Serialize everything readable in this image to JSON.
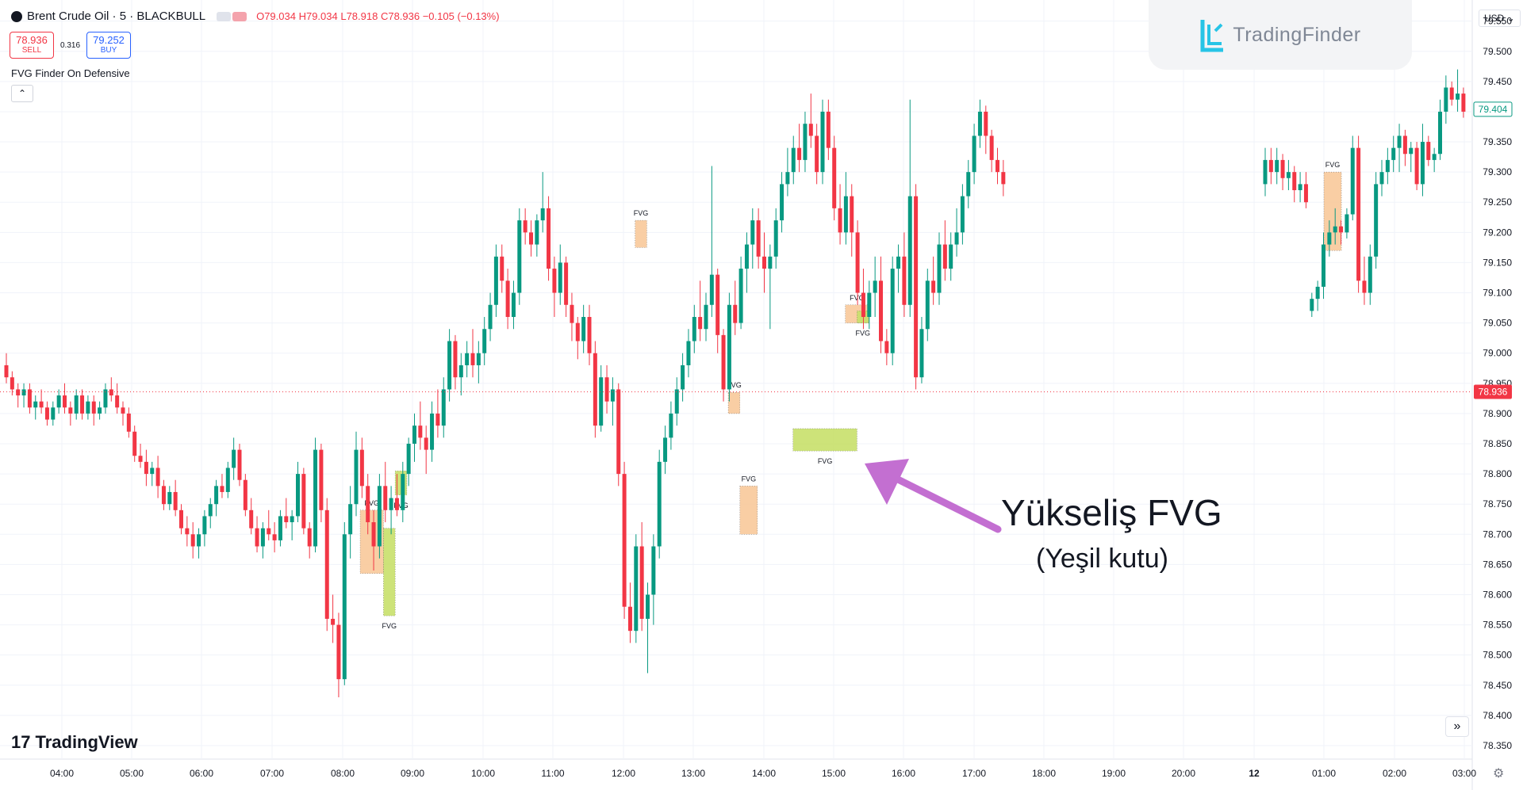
{
  "header": {
    "symbol": "Brent Crude Oil · 5 · BLACKBULL",
    "ohlc": "O79.034 H79.034 L78.918 C78.936 −0.105 (−0.13%)"
  },
  "trade": {
    "sell_price": "78.936",
    "sell_label": "SELL",
    "spread": "0.316",
    "buy_price": "79.252",
    "buy_label": "BUY"
  },
  "indicator": {
    "name": "FVG Finder On Defensive"
  },
  "brand": {
    "name": "TradingFinder"
  },
  "currency": {
    "label": "USD ⌄"
  },
  "footer": {
    "logo_text": "TradingView",
    "logo_mark": "17"
  },
  "annotation": {
    "title": "Yükseliş FVG",
    "subtitle": "(Yeşil kutu)"
  },
  "colors": {
    "up": "#089981",
    "down": "#f23645",
    "fvg_bull": "#c8e06b",
    "fvg_bear": "#f9c99b",
    "arrow": "#c36fd1"
  },
  "chart_data": {
    "type": "candlestick",
    "x_tick_labels": [
      "04:00",
      "05:00",
      "06:00",
      "07:00",
      "08:00",
      "09:00",
      "10:00",
      "11:00",
      "12:00",
      "13:00",
      "14:00",
      "15:00",
      "16:00",
      "17:00",
      "18:00",
      "19:00",
      "20:00",
      "12",
      "01:00",
      "02:00",
      "03:00"
    ],
    "y_tick_labels": [
      "79.550",
      "79.500",
      "79.450",
      "79.400",
      "79.350",
      "79.300",
      "79.250",
      "79.200",
      "79.150",
      "79.100",
      "79.050",
      "79.000",
      "78.950",
      "78.900",
      "78.850",
      "78.800",
      "78.750",
      "78.700",
      "78.650",
      "78.600",
      "78.550",
      "78.500",
      "78.450",
      "78.400",
      "78.350"
    ],
    "ylim": [
      78.325,
      79.585
    ],
    "last_price": 78.936,
    "last_price_label": "78.936",
    "current_close": 79.404,
    "current_close_label": "79.404",
    "grid": true,
    "fvg_label": "FVG",
    "fvg_zones": [
      {
        "type": "bearish",
        "t0": "08:15",
        "t1": "08:35",
        "top": 78.74,
        "bottom": 78.635
      },
      {
        "type": "bullish",
        "t0": "08:35",
        "t1": "08:45",
        "top": 78.71,
        "bottom": 78.565
      },
      {
        "type": "bullish",
        "t0": "08:45",
        "t1": "08:55",
        "top": 78.805,
        "bottom": 78.765
      },
      {
        "type": "bearish",
        "t0": "12:10",
        "t1": "12:20",
        "top": 79.22,
        "bottom": 79.175
      },
      {
        "type": "bearish",
        "t0": "13:30",
        "t1": "13:40",
        "top": 78.935,
        "bottom": 78.9
      },
      {
        "type": "bearish",
        "t0": "13:40",
        "t1": "13:55",
        "top": 78.78,
        "bottom": 78.7
      },
      {
        "type": "bullish",
        "t0": "14:25",
        "t1": "15:20",
        "top": 78.875,
        "bottom": 78.838
      },
      {
        "type": "bearish",
        "t0": "15:10",
        "t1": "15:30",
        "top": 79.08,
        "bottom": 79.05
      },
      {
        "type": "bullish",
        "t0": "15:20",
        "t1": "15:30",
        "top": 79.07,
        "bottom": 79.05
      },
      {
        "type": "bearish",
        "t0": "01:00",
        "t1": "01:15",
        "top": 79.3,
        "bottom": 79.17
      }
    ],
    "candles": [
      [
        78.98,
        79.0,
        78.95,
        78.96
      ],
      [
        78.96,
        78.97,
        78.93,
        78.94
      ],
      [
        78.94,
        78.95,
        78.91,
        78.93
      ],
      [
        78.93,
        78.95,
        78.91,
        78.94
      ],
      [
        78.94,
        78.95,
        78.9,
        78.91
      ],
      [
        78.91,
        78.93,
        78.89,
        78.92
      ],
      [
        78.92,
        78.94,
        78.9,
        78.91
      ],
      [
        78.91,
        78.92,
        78.88,
        78.89
      ],
      [
        78.89,
        78.92,
        78.88,
        78.91
      ],
      [
        78.91,
        78.94,
        78.9,
        78.93
      ],
      [
        78.93,
        78.95,
        78.9,
        78.91
      ],
      [
        78.91,
        78.92,
        78.88,
        78.9
      ],
      [
        78.9,
        78.94,
        78.89,
        78.93
      ],
      [
        78.93,
        78.94,
        78.89,
        78.9
      ],
      [
        78.9,
        78.93,
        78.89,
        78.92
      ],
      [
        78.92,
        78.93,
        78.88,
        78.9
      ],
      [
        78.9,
        78.92,
        78.89,
        78.91
      ],
      [
        78.91,
        78.95,
        78.9,
        78.94
      ],
      [
        78.94,
        78.96,
        78.92,
        78.93
      ],
      [
        78.93,
        78.95,
        78.9,
        78.91
      ],
      [
        78.91,
        78.92,
        78.88,
        78.9
      ],
      [
        78.9,
        78.91,
        78.86,
        78.87
      ],
      [
        78.87,
        78.88,
        78.82,
        78.83
      ],
      [
        78.83,
        78.85,
        78.81,
        78.82
      ],
      [
        78.82,
        78.84,
        78.78,
        78.8
      ],
      [
        78.8,
        78.82,
        78.78,
        78.81
      ],
      [
        78.81,
        78.83,
        78.76,
        78.78
      ],
      [
        78.78,
        78.79,
        78.74,
        78.75
      ],
      [
        78.75,
        78.78,
        78.74,
        78.77
      ],
      [
        78.77,
        78.79,
        78.73,
        78.74
      ],
      [
        78.74,
        78.75,
        78.7,
        78.71
      ],
      [
        78.71,
        78.73,
        78.68,
        78.7
      ],
      [
        78.7,
        78.72,
        78.66,
        78.68
      ],
      [
        78.68,
        78.71,
        78.66,
        78.7
      ],
      [
        78.7,
        78.74,
        78.68,
        78.73
      ],
      [
        78.73,
        78.76,
        78.71,
        78.75
      ],
      [
        78.75,
        78.79,
        78.73,
        78.78
      ],
      [
        78.78,
        78.8,
        78.76,
        78.77
      ],
      [
        78.77,
        78.82,
        78.76,
        78.81
      ],
      [
        78.81,
        78.86,
        78.79,
        78.84
      ],
      [
        78.84,
        78.85,
        78.78,
        78.79
      ],
      [
        78.79,
        78.8,
        78.73,
        78.74
      ],
      [
        78.74,
        78.76,
        78.7,
        78.71
      ],
      [
        78.71,
        78.73,
        78.67,
        78.68
      ],
      [
        78.68,
        78.72,
        78.66,
        78.71
      ],
      [
        78.71,
        78.74,
        78.69,
        78.7
      ],
      [
        78.7,
        78.72,
        78.67,
        78.69
      ],
      [
        78.69,
        78.74,
        78.68,
        78.73
      ],
      [
        78.73,
        78.76,
        78.71,
        78.72
      ],
      [
        78.72,
        78.74,
        78.69,
        78.73
      ],
      [
        78.73,
        78.82,
        78.72,
        78.8
      ],
      [
        78.8,
        78.81,
        78.7,
        78.71
      ],
      [
        78.71,
        78.72,
        78.66,
        78.68
      ],
      [
        78.68,
        78.86,
        78.67,
        78.84
      ],
      [
        78.84,
        78.85,
        78.72,
        78.74
      ],
      [
        78.74,
        78.76,
        78.54,
        78.56
      ],
      [
        78.56,
        78.6,
        78.52,
        78.55
      ],
      [
        78.55,
        78.57,
        78.43,
        78.46
      ],
      [
        78.46,
        78.72,
        78.45,
        78.7
      ],
      [
        78.7,
        78.78,
        78.66,
        78.75
      ],
      [
        78.75,
        78.87,
        78.73,
        78.84
      ],
      [
        78.84,
        78.86,
        78.76,
        78.78
      ],
      [
        78.78,
        78.8,
        78.7,
        78.72
      ],
      [
        78.72,
        78.74,
        78.64,
        78.68
      ],
      [
        78.68,
        78.8,
        78.66,
        78.78
      ],
      [
        78.78,
        78.82,
        78.72,
        78.74
      ],
      [
        78.74,
        78.78,
        78.7,
        78.76
      ],
      [
        78.76,
        78.8,
        78.73,
        78.74
      ],
      [
        78.74,
        78.82,
        78.72,
        78.8
      ],
      [
        78.8,
        78.86,
        78.78,
        78.85
      ],
      [
        78.85,
        78.9,
        78.82,
        78.88
      ],
      [
        78.88,
        78.92,
        78.84,
        78.86
      ],
      [
        78.86,
        78.88,
        78.8,
        78.84
      ],
      [
        78.84,
        78.92,
        78.82,
        78.9
      ],
      [
        78.9,
        78.94,
        78.86,
        78.88
      ],
      [
        78.88,
        78.96,
        78.86,
        78.94
      ],
      [
        78.94,
        79.04,
        78.92,
        79.02
      ],
      [
        79.02,
        79.03,
        78.94,
        78.96
      ],
      [
        78.96,
        79.0,
        78.93,
        78.98
      ],
      [
        78.98,
        79.02,
        78.96,
        79.0
      ],
      [
        79.0,
        79.04,
        78.96,
        78.98
      ],
      [
        78.98,
        79.02,
        78.95,
        79.0
      ],
      [
        79.0,
        79.06,
        78.98,
        79.04
      ],
      [
        79.04,
        79.1,
        79.02,
        79.08
      ],
      [
        79.08,
        79.18,
        79.06,
        79.16
      ],
      [
        79.16,
        79.18,
        79.1,
        79.12
      ],
      [
        79.12,
        79.14,
        79.04,
        79.06
      ],
      [
        79.06,
        79.12,
        79.04,
        79.1
      ],
      [
        79.1,
        79.24,
        79.08,
        79.22
      ],
      [
        79.22,
        79.24,
        79.18,
        79.2
      ],
      [
        79.2,
        79.22,
        79.16,
        79.18
      ],
      [
        79.18,
        79.23,
        79.16,
        79.22
      ],
      [
        79.22,
        79.3,
        79.2,
        79.24
      ],
      [
        79.24,
        79.26,
        79.12,
        79.14
      ],
      [
        79.14,
        79.16,
        79.06,
        79.1
      ],
      [
        79.1,
        79.18,
        79.08,
        79.15
      ],
      [
        79.15,
        79.16,
        79.06,
        79.08
      ],
      [
        79.08,
        79.1,
        79.02,
        79.05
      ],
      [
        79.05,
        79.06,
        78.99,
        79.02
      ],
      [
        79.02,
        79.08,
        79.0,
        79.06
      ],
      [
        79.06,
        79.08,
        78.98,
        79.0
      ],
      [
        79.0,
        79.02,
        78.86,
        78.88
      ],
      [
        78.88,
        78.98,
        78.87,
        78.96
      ],
      [
        78.96,
        78.98,
        78.9,
        78.92
      ],
      [
        78.92,
        78.96,
        78.88,
        78.94
      ],
      [
        78.94,
        78.95,
        78.78,
        78.8
      ],
      [
        78.8,
        78.82,
        78.56,
        78.58
      ],
      [
        78.58,
        78.62,
        78.52,
        78.54
      ],
      [
        78.54,
        78.7,
        78.52,
        78.68
      ],
      [
        78.68,
        78.72,
        78.54,
        78.56
      ],
      [
        78.56,
        78.62,
        78.47,
        78.6
      ],
      [
        78.6,
        78.7,
        78.55,
        78.68
      ],
      [
        78.68,
        78.84,
        78.66,
        78.82
      ],
      [
        78.82,
        78.88,
        78.8,
        78.86
      ],
      [
        78.86,
        78.92,
        78.84,
        78.9
      ],
      [
        78.9,
        78.96,
        78.88,
        78.94
      ],
      [
        78.94,
        79.0,
        78.92,
        78.98
      ],
      [
        78.98,
        79.04,
        78.96,
        79.02
      ],
      [
        79.02,
        79.08,
        79.0,
        79.06
      ],
      [
        79.06,
        79.12,
        79.02,
        79.04
      ],
      [
        79.04,
        79.1,
        79.02,
        79.08
      ],
      [
        79.08,
        79.31,
        79.06,
        79.13
      ],
      [
        79.13,
        79.14,
        79.0,
        79.03
      ],
      [
        79.03,
        79.04,
        78.92,
        78.94
      ],
      [
        78.94,
        79.1,
        78.92,
        79.08
      ],
      [
        79.08,
        79.12,
        79.03,
        79.05
      ],
      [
        79.05,
        79.16,
        79.04,
        79.14
      ],
      [
        79.14,
        79.2,
        79.1,
        79.18
      ],
      [
        79.18,
        79.24,
        79.14,
        79.22
      ],
      [
        79.22,
        79.24,
        79.14,
        79.16
      ],
      [
        79.16,
        79.2,
        79.1,
        79.14
      ],
      [
        79.14,
        79.18,
        79.04,
        79.16
      ],
      [
        79.16,
        79.24,
        79.14,
        79.22
      ],
      [
        79.22,
        79.3,
        79.2,
        79.28
      ],
      [
        79.28,
        79.34,
        79.26,
        79.3
      ],
      [
        79.3,
        79.36,
        79.28,
        79.34
      ],
      [
        79.34,
        79.38,
        79.3,
        79.32
      ],
      [
        79.32,
        79.4,
        79.3,
        79.38
      ],
      [
        79.38,
        79.43,
        79.34,
        79.36
      ],
      [
        79.36,
        79.38,
        79.28,
        79.3
      ],
      [
        79.3,
        79.42,
        79.28,
        79.4
      ],
      [
        79.4,
        79.42,
        79.32,
        79.34
      ],
      [
        79.34,
        79.36,
        79.22,
        79.24
      ],
      [
        79.24,
        79.28,
        79.18,
        79.2
      ],
      [
        79.2,
        79.3,
        79.18,
        79.26
      ],
      [
        79.26,
        79.28,
        79.16,
        79.2
      ],
      [
        79.2,
        79.22,
        79.08,
        79.1
      ],
      [
        79.1,
        79.14,
        79.04,
        79.06
      ],
      [
        79.06,
        79.12,
        79.04,
        79.1
      ],
      [
        79.1,
        79.16,
        79.06,
        79.12
      ],
      [
        79.12,
        79.16,
        79.0,
        79.02
      ],
      [
        79.02,
        79.04,
        78.98,
        79.0
      ],
      [
        79.0,
        79.16,
        78.98,
        79.14
      ],
      [
        79.14,
        79.18,
        79.1,
        79.16
      ],
      [
        79.16,
        79.2,
        79.06,
        79.08
      ],
      [
        79.08,
        79.42,
        79.06,
        79.26
      ],
      [
        79.26,
        79.28,
        78.94,
        78.96
      ],
      [
        78.96,
        79.06,
        78.95,
        79.04
      ],
      [
        79.04,
        79.14,
        79.02,
        79.12
      ],
      [
        79.12,
        79.16,
        79.08,
        79.1
      ],
      [
        79.1,
        79.2,
        79.08,
        79.18
      ],
      [
        79.18,
        79.22,
        79.12,
        79.14
      ],
      [
        79.14,
        79.2,
        79.12,
        79.18
      ],
      [
        79.18,
        79.24,
        79.16,
        79.2
      ],
      [
        79.2,
        79.28,
        79.18,
        79.26
      ],
      [
        79.26,
        79.32,
        79.24,
        79.3
      ],
      [
        79.3,
        79.38,
        79.28,
        79.36
      ],
      [
        79.36,
        79.42,
        79.34,
        79.4
      ],
      [
        79.4,
        79.41,
        79.33,
        79.36
      ],
      [
        79.36,
        79.37,
        79.3,
        79.32
      ],
      [
        79.32,
        79.34,
        79.28,
        79.3
      ],
      [
        79.3,
        79.32,
        79.26,
        79.28
      ],
      [
        79.28,
        79.34,
        79.26,
        79.32
      ],
      [
        79.32,
        79.34,
        79.28,
        79.3
      ],
      [
        79.3,
        79.34,
        79.28,
        79.32
      ],
      [
        79.32,
        79.33,
        79.27,
        79.29
      ],
      [
        79.29,
        79.32,
        79.27,
        79.3
      ],
      [
        79.3,
        79.31,
        79.25,
        79.27
      ],
      [
        79.27,
        79.3,
        79.25,
        79.28
      ],
      [
        79.28,
        79.3,
        79.24,
        79.25
      ],
      [
        79.07,
        79.1,
        79.06,
        79.09
      ],
      [
        79.09,
        79.12,
        79.07,
        79.11
      ],
      [
        79.11,
        79.2,
        79.09,
        79.18
      ],
      [
        79.18,
        79.22,
        79.16,
        79.2
      ],
      [
        79.2,
        79.24,
        79.18,
        79.21
      ],
      [
        79.21,
        79.22,
        79.18,
        79.2
      ],
      [
        79.2,
        79.24,
        79.19,
        79.23
      ],
      [
        79.23,
        79.36,
        79.22,
        79.34
      ],
      [
        79.34,
        79.36,
        79.1,
        79.12
      ],
      [
        79.12,
        79.16,
        79.08,
        79.1
      ],
      [
        79.1,
        79.18,
        79.08,
        79.16
      ],
      [
        79.16,
        79.3,
        79.14,
        79.28
      ],
      [
        79.28,
        79.32,
        79.26,
        79.3
      ],
      [
        79.3,
        79.34,
        79.28,
        79.32
      ],
      [
        79.32,
        79.36,
        79.3,
        79.34
      ],
      [
        79.34,
        79.38,
        79.3,
        79.36
      ],
      [
        79.36,
        79.37,
        79.31,
        79.33
      ],
      [
        79.33,
        79.35,
        79.3,
        79.34
      ],
      [
        79.34,
        79.35,
        79.27,
        79.28
      ],
      [
        79.28,
        79.38,
        79.26,
        79.35
      ],
      [
        79.35,
        79.36,
        79.31,
        79.32
      ],
      [
        79.32,
        79.34,
        79.3,
        79.33
      ],
      [
        79.33,
        79.42,
        79.32,
        79.4
      ],
      [
        79.4,
        79.46,
        79.38,
        79.44
      ],
      [
        79.44,
        79.45,
        79.41,
        79.42
      ],
      [
        79.42,
        79.47,
        79.4,
        79.43
      ],
      [
        79.43,
        79.44,
        79.39,
        79.4
      ],
      [
        79.4,
        79.42,
        79.38,
        79.41
      ],
      [
        79.41,
        79.42,
        79.38,
        79.4
      ]
    ]
  }
}
